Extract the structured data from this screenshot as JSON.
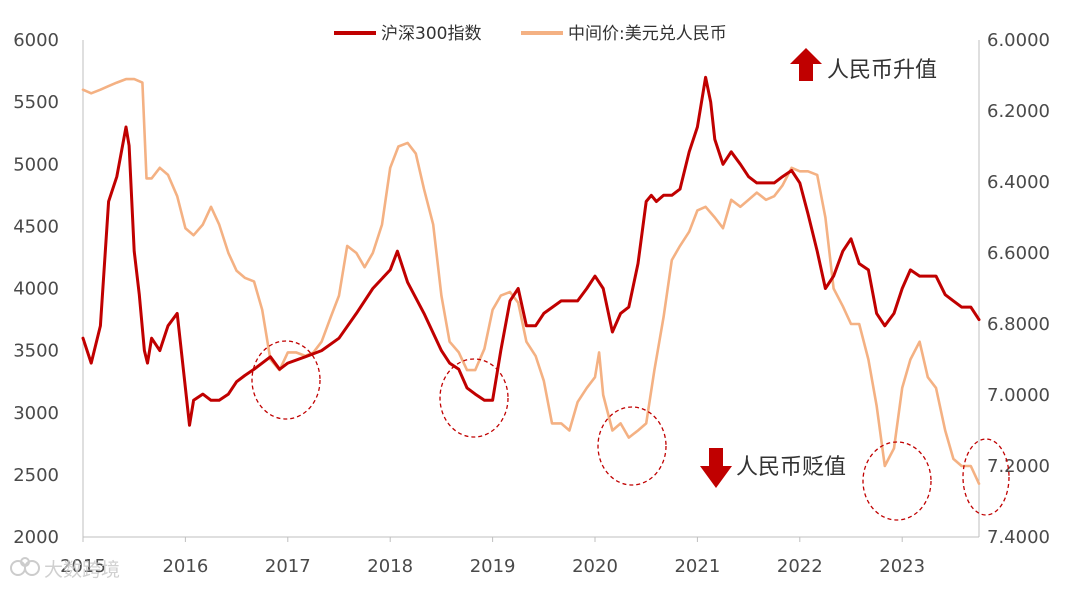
{
  "chart_data": {
    "type": "line",
    "legend": {
      "position": "top-center",
      "entries": [
        "沪深300指数",
        "中间价:美元兑人民币"
      ]
    },
    "x_ticks": [
      "2015",
      "2016",
      "2017",
      "2018",
      "2019",
      "2020",
      "2021",
      "2022",
      "2023"
    ],
    "left_axis": {
      "ylim": [
        2000,
        6000
      ],
      "ticks": [
        "2000",
        "2500",
        "3000",
        "3500",
        "4000",
        "4500",
        "5000",
        "5500",
        "6000"
      ]
    },
    "right_axis": {
      "ylim": [
        6.0,
        7.4
      ],
      "inverted": true,
      "ticks": [
        "6.0000",
        "6.2000",
        "6.4000",
        "6.6000",
        "6.8000",
        "7.0000",
        "7.2000",
        "7.4000"
      ]
    },
    "series": [
      {
        "name": "沪深300指数",
        "axis": "left",
        "color": "#c00000",
        "x": [
          2015.0,
          2015.08,
          2015.17,
          2015.25,
          2015.33,
          2015.42,
          2015.45,
          2015.5,
          2015.55,
          2015.6,
          2015.63,
          2015.67,
          2015.75,
          2015.83,
          2015.92,
          2016.0,
          2016.04,
          2016.08,
          2016.17,
          2016.25,
          2016.33,
          2016.42,
          2016.5,
          2016.58,
          2016.67,
          2016.75,
          2016.83,
          2016.92,
          2017.0,
          2017.17,
          2017.33,
          2017.5,
          2017.67,
          2017.83,
          2018.0,
          2018.07,
          2018.17,
          2018.33,
          2018.5,
          2018.58,
          2018.67,
          2018.75,
          2018.83,
          2018.92,
          2019.0,
          2019.08,
          2019.17,
          2019.25,
          2019.33,
          2019.42,
          2019.5,
          2019.67,
          2019.83,
          2019.92,
          2020.0,
          2020.08,
          2020.17,
          2020.25,
          2020.33,
          2020.42,
          2020.5,
          2020.55,
          2020.6,
          2020.67,
          2020.75,
          2020.83,
          2020.92,
          2021.0,
          2021.08,
          2021.13,
          2021.17,
          2021.25,
          2021.33,
          2021.42,
          2021.5,
          2021.58,
          2021.67,
          2021.75,
          2021.83,
          2021.92,
          2022.0,
          2022.08,
          2022.17,
          2022.25,
          2022.33,
          2022.42,
          2022.5,
          2022.58,
          2022.67,
          2022.75,
          2022.83,
          2022.92,
          2023.0,
          2023.08,
          2023.17,
          2023.25,
          2023.33,
          2023.42,
          2023.5,
          2023.58,
          2023.67,
          2023.75
        ],
        "values": [
          3600,
          3400,
          3700,
          4700,
          4900,
          5300,
          5150,
          4300,
          3950,
          3500,
          3400,
          3600,
          3500,
          3700,
          3800,
          3200,
          2900,
          3100,
          3150,
          3100,
          3100,
          3150,
          3250,
          3300,
          3350,
          3400,
          3450,
          3350,
          3400,
          3450,
          3500,
          3600,
          3800,
          4000,
          4150,
          4300,
          4050,
          3800,
          3500,
          3400,
          3350,
          3200,
          3150,
          3100,
          3100,
          3500,
          3900,
          4000,
          3700,
          3700,
          3800,
          3900,
          3900,
          4000,
          4100,
          4000,
          3650,
          3800,
          3850,
          4200,
          4700,
          4750,
          4700,
          4750,
          4750,
          4800,
          5100,
          5300,
          5700,
          5500,
          5200,
          5000,
          5100,
          5000,
          4900,
          4850,
          4850,
          4850,
          4900,
          4950,
          4850,
          4600,
          4300,
          4000,
          4100,
          4300,
          4400,
          4200,
          4150,
          3800,
          3700,
          3800,
          4000,
          4150,
          4100,
          4100,
          4100,
          3950,
          3900,
          3850,
          3850,
          3750
        ]
      },
      {
        "name": "中间价:美元兑人民币",
        "axis": "right",
        "color": "#f4b183",
        "x": [
          2015.0,
          2015.08,
          2015.17,
          2015.25,
          2015.33,
          2015.42,
          2015.5,
          2015.58,
          2015.62,
          2015.63,
          2015.67,
          2015.75,
          2015.83,
          2015.92,
          2016.0,
          2016.08,
          2016.17,
          2016.25,
          2016.33,
          2016.42,
          2016.5,
          2016.58,
          2016.67,
          2016.75,
          2016.83,
          2016.92,
          2017.0,
          2017.08,
          2017.17,
          2017.25,
          2017.33,
          2017.42,
          2017.5,
          2017.58,
          2017.67,
          2017.75,
          2017.83,
          2017.92,
          2018.0,
          2018.08,
          2018.17,
          2018.25,
          2018.33,
          2018.42,
          2018.5,
          2018.58,
          2018.67,
          2018.75,
          2018.83,
          2018.92,
          2019.0,
          2019.08,
          2019.17,
          2019.25,
          2019.33,
          2019.42,
          2019.5,
          2019.58,
          2019.67,
          2019.75,
          2019.83,
          2019.92,
          2020.0,
          2020.04,
          2020.08,
          2020.17,
          2020.25,
          2020.33,
          2020.42,
          2020.5,
          2020.58,
          2020.67,
          2020.75,
          2020.83,
          2020.92,
          2021.0,
          2021.08,
          2021.17,
          2021.25,
          2021.33,
          2021.42,
          2021.5,
          2021.58,
          2021.67,
          2021.75,
          2021.83,
          2021.92,
          2022.0,
          2022.08,
          2022.17,
          2022.25,
          2022.33,
          2022.42,
          2022.5,
          2022.58,
          2022.67,
          2022.75,
          2022.83,
          2022.92,
          2023.0,
          2023.08,
          2023.17,
          2023.25,
          2023.33,
          2023.42,
          2023.5,
          2023.58,
          2023.67,
          2023.75
        ],
        "values": [
          6.14,
          6.15,
          6.14,
          6.13,
          6.12,
          6.11,
          6.11,
          6.12,
          6.39,
          6.39,
          6.39,
          6.36,
          6.38,
          6.44,
          6.53,
          6.55,
          6.52,
          6.47,
          6.52,
          6.6,
          6.65,
          6.67,
          6.68,
          6.76,
          6.9,
          6.93,
          6.88,
          6.88,
          6.89,
          6.88,
          6.85,
          6.78,
          6.72,
          6.58,
          6.6,
          6.64,
          6.6,
          6.52,
          6.36,
          6.3,
          6.29,
          6.32,
          6.42,
          6.52,
          6.72,
          6.85,
          6.88,
          6.93,
          6.93,
          6.87,
          6.76,
          6.72,
          6.71,
          6.74,
          6.85,
          6.89,
          6.96,
          7.08,
          7.08,
          7.1,
          7.02,
          6.98,
          6.95,
          6.88,
          7.0,
          7.1,
          7.08,
          7.12,
          7.1,
          7.08,
          6.93,
          6.78,
          6.62,
          6.58,
          6.54,
          6.48,
          6.47,
          6.5,
          6.53,
          6.45,
          6.47,
          6.45,
          6.43,
          6.45,
          6.44,
          6.41,
          6.36,
          6.37,
          6.37,
          6.38,
          6.5,
          6.7,
          6.75,
          6.8,
          6.8,
          6.9,
          7.03,
          7.2,
          7.15,
          6.98,
          6.9,
          6.85,
          6.95,
          6.98,
          7.1,
          7.18,
          7.2,
          7.2,
          7.25
        ]
      }
    ],
    "annotations": {
      "appreciation": "人民币升值",
      "depreciation": "人民币贬值"
    }
  },
  "watermark": "大数跨境",
  "colors": {
    "arrow": "#c00000",
    "circle": "#c00000",
    "axis": "#bfbfbf"
  }
}
